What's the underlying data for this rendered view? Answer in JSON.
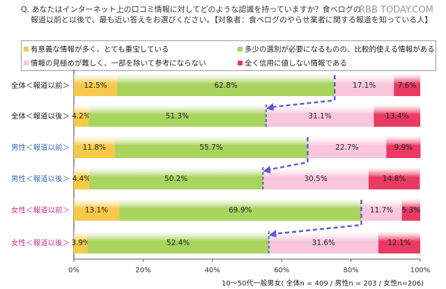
{
  "question": {
    "line1": "Q. あなたはインターネット上の口コミ情報に対してどのような認識を持っていますか？食ベログの",
    "line2": "報道以前と以後で、最も近い答えをお選びください。【対象者：食ベログのやらせ業者に関する報道を知っている人】"
  },
  "watermark": "RBB TODAY.COM",
  "footnote": "10～50代一般男女( 全体n = 409 / 男性n = 203 / 女性n=206)",
  "colors": {
    "yellow": "#f7c94a",
    "green": "#a9d45e",
    "pink": "#f9c6dc",
    "red": "#ea3a63",
    "male_label": "#3a6db5",
    "female_label": "#c8348c",
    "arrow": "#5b5bd6"
  },
  "chart_data": {
    "type": "bar",
    "orientation": "horizontal",
    "stacked": true,
    "categories": [
      "全体＜報道以前＞",
      "全体＜報道以後＞",
      "男性＜報道以前＞",
      "男性＜報道以後＞",
      "女性＜報道以前＞",
      "女性＜報道以後＞"
    ],
    "series": [
      {
        "name": "有意義な情報が多く、とても重宝している",
        "values": [
          12.5,
          4.2,
          11.8,
          4.4,
          13.1,
          3.9
        ]
      },
      {
        "name": "多少の選別が必要になるものの、比較的使える情報がある",
        "values": [
          62.8,
          51.3,
          55.7,
          50.2,
          69.9,
          52.4
        ]
      },
      {
        "name": "情報の見極めが難しく、一部を除いて参考にならない",
        "values": [
          17.1,
          31.1,
          22.7,
          30.5,
          11.7,
          31.6
        ]
      },
      {
        "name": "全く信用に値しない情報である",
        "values": [
          7.6,
          13.4,
          9.9,
          14.8,
          5.3,
          12.1
        ]
      }
    ],
    "xlim": [
      0,
      100
    ],
    "xticks": [
      "0%",
      "20%",
      "40%",
      "60%",
      "80%",
      "100%"
    ],
    "legend": "top"
  }
}
